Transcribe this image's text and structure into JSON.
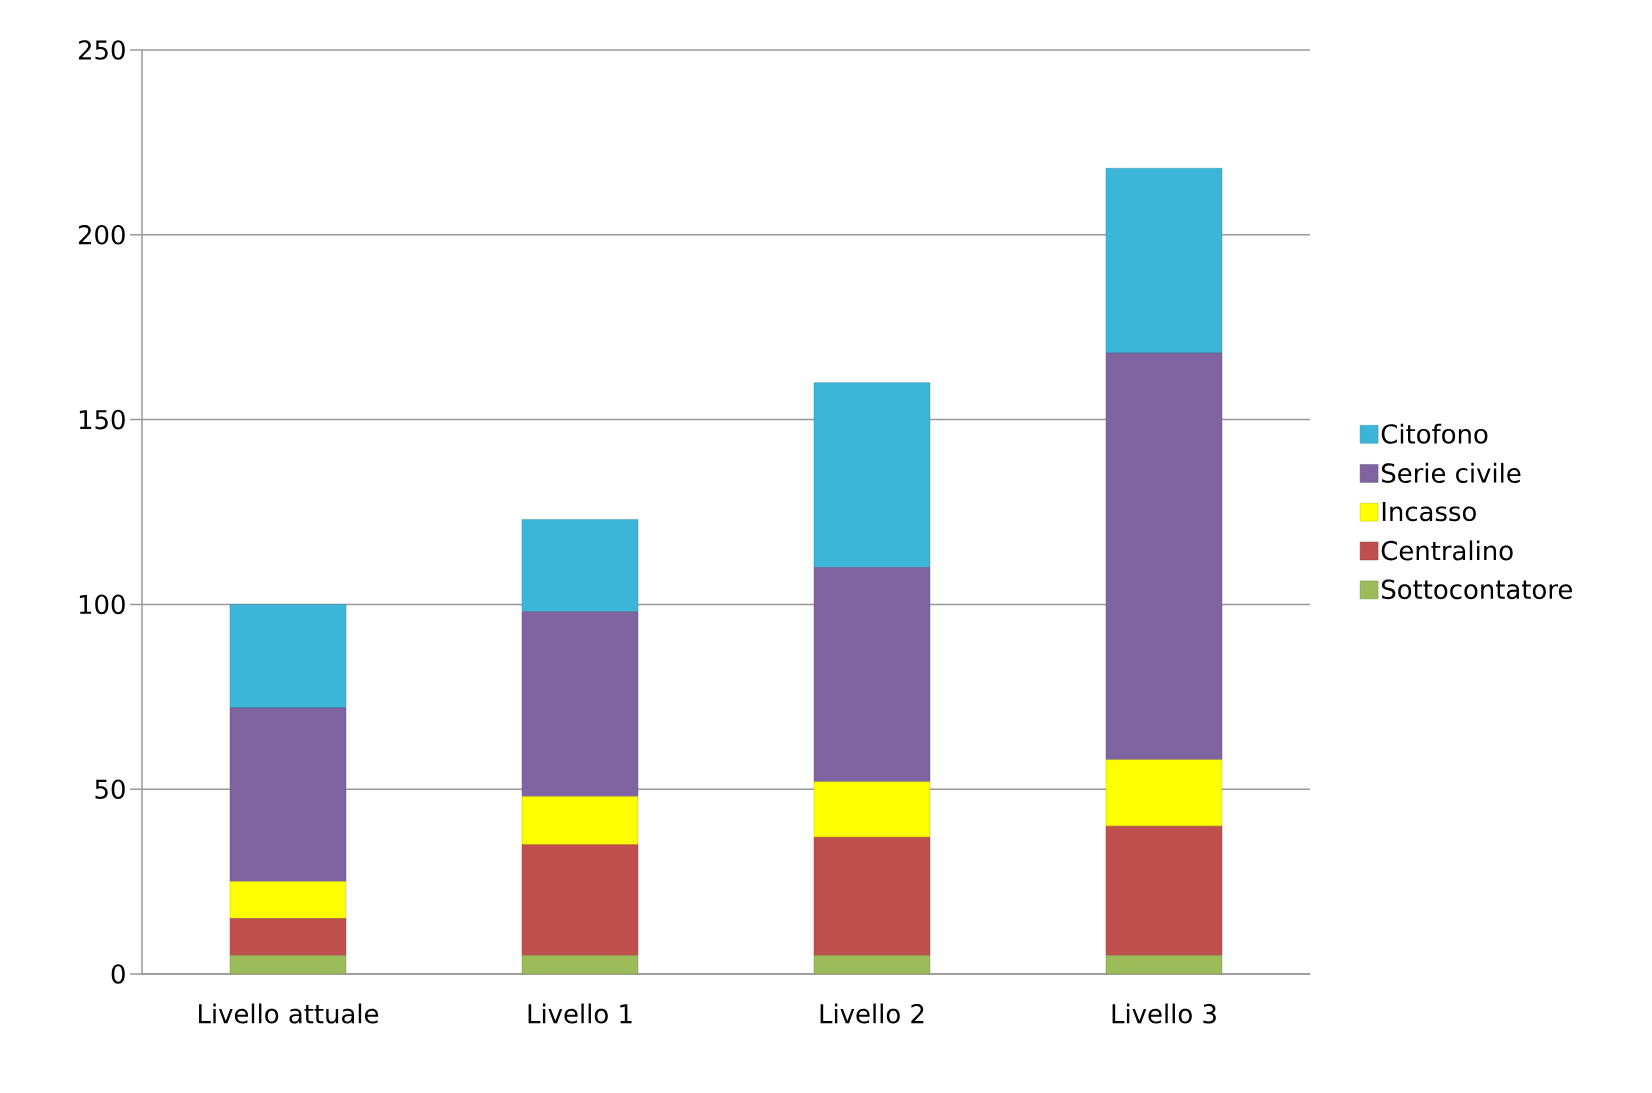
{
  "chart_data": {
    "type": "bar",
    "stacked": true,
    "categories": [
      "Livello attuale",
      "Livello 1",
      "Livello 2",
      "Livello 3"
    ],
    "series": [
      {
        "name": "Sottocontatore",
        "color": "#9bbb59",
        "values": [
          5,
          5,
          5,
          5
        ]
      },
      {
        "name": "Centralino",
        "color": "#c0504d",
        "values": [
          10,
          30,
          32,
          35
        ]
      },
      {
        "name": "Incasso",
        "color": "#ffff00",
        "values": [
          10,
          13,
          15,
          18
        ]
      },
      {
        "name": "Serie civile",
        "color": "#8064a2",
        "values": [
          47,
          50,
          58,
          110
        ]
      },
      {
        "name": "Citofono",
        "color": "#3bb6d8",
        "values": [
          28,
          25,
          50,
          50
        ]
      }
    ],
    "ylim": [
      0,
      250
    ],
    "yticks": [
      0,
      50,
      100,
      150,
      200,
      250
    ],
    "grid": "y",
    "legend": "right"
  }
}
